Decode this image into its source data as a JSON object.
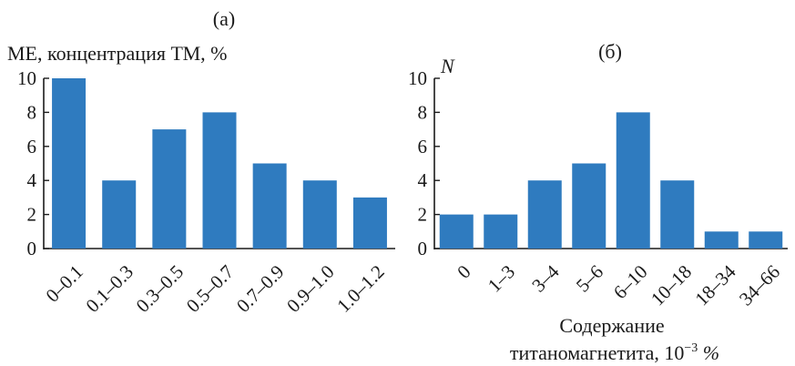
{
  "chart_data": [
    {
      "type": "bar",
      "panel_label": "(а)",
      "ylabel": "МЕ, концентрация ТМ, %",
      "xlabel": "",
      "categories": [
        "0–0.1",
        "0.1–0.3",
        "0.3–0.5",
        "0.5–0.7",
        "0.7–0.9",
        "0.9–1.0",
        "1.0–1.2"
      ],
      "values": [
        10,
        4,
        7,
        8,
        5,
        4,
        3
      ],
      "ylim": [
        0,
        10
      ],
      "yticks": [
        0,
        2,
        4,
        6,
        8,
        10
      ],
      "grid": false,
      "bar_color": "#2f7bbf"
    },
    {
      "type": "bar",
      "panel_label": "(б)",
      "ylabel": "N",
      "xlabel_line1": "Содержание",
      "xlabel_line2": "титаномагнетита, 10",
      "xlabel_exp": "−3",
      "xlabel_unit": " %",
      "categories": [
        "0",
        "1–3",
        "3–4",
        "5–6",
        "6–10",
        "10–18",
        "18–34",
        "34–66"
      ],
      "values": [
        2,
        2,
        4,
        5,
        8,
        4,
        1,
        1
      ],
      "ylim": [
        0,
        10
      ],
      "yticks": [
        0,
        2,
        4,
        6,
        8,
        10
      ],
      "grid": false,
      "bar_color": "#2f7bbf"
    }
  ]
}
